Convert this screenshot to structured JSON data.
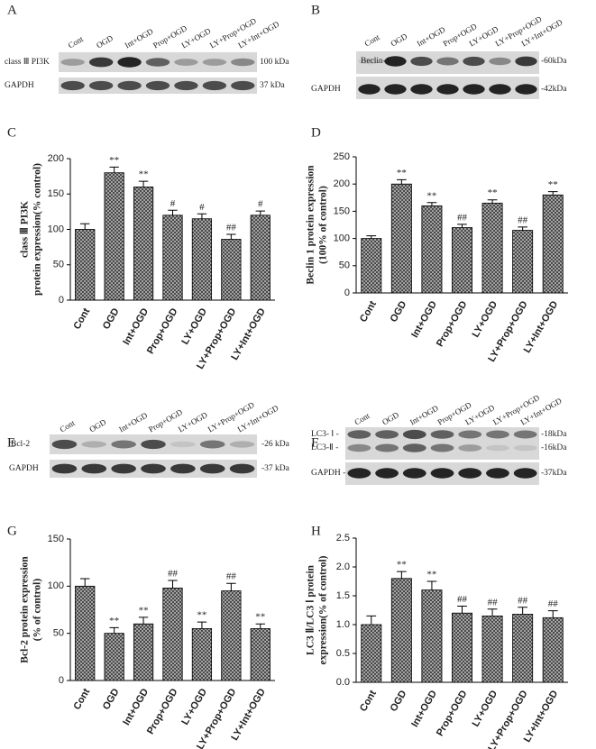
{
  "blots": [
    {
      "panel": "A",
      "lanes": [
        "Cont",
        "OGD",
        "Int+OGD",
        "Prop+OGD",
        "LY+OGD",
        "LY+Prop+OGD",
        "LY+Int+OGD"
      ],
      "rows": [
        {
          "label": "class Ⅲ PI3K",
          "size": "100 kDa"
        },
        {
          "label": "GAPDH",
          "size": "37 kDa"
        }
      ]
    },
    {
      "panel": "B",
      "lanes": [
        "Cont",
        "OGD",
        "Int+OGD",
        "Prop+OGD",
        "LY+OGD",
        "LY+Prop+OGD",
        "LY+Int+OGD"
      ],
      "rows": [
        {
          "label": "Beclin-1",
          "size": "-60kDa"
        },
        {
          "label": "GAPDH",
          "size": "-42kDa"
        }
      ]
    },
    {
      "panel": "E",
      "lanes": [
        "Cont",
        "OGD",
        "Int+OGD",
        "Prop+OGD",
        "LY+OGD",
        "LY+Prop+OGD",
        "LY+Int+OGD"
      ],
      "rows": [
        {
          "label": "Bcl-2",
          "size": "-26 kDa"
        },
        {
          "label": "GAPDH",
          "size": "-37 kDa"
        }
      ]
    },
    {
      "panel": "F",
      "lanes": [
        "Cont",
        "OGD",
        "Int+OGD",
        "Prop+OGD",
        "LY+OGD",
        "LY+Prop+OGD",
        "LY+Int+OGD"
      ],
      "rows": [
        {
          "label": "LC3- Ⅰ -",
          "size": "-18kDa"
        },
        {
          "label": "LC3-Ⅱ -",
          "size": "-16kDa"
        },
        {
          "label": "GAPDH -",
          "size": "-37kDa"
        }
      ]
    }
  ],
  "chart_data": [
    {
      "type": "bar",
      "panel": "C",
      "ylabel": [
        "class Ⅲ PI3K",
        "protein expression(% control)"
      ],
      "categories": [
        "Cont",
        "OGD",
        "Int+OGD",
        "Prop+OGD",
        "LY+OGD",
        "LY+Prop+OGD",
        "LY+Int+OGD"
      ],
      "values": [
        100,
        180,
        160,
        120,
        115,
        86,
        120
      ],
      "errors": [
        8,
        8,
        8,
        7,
        7,
        7,
        6
      ],
      "annotations": [
        null,
        "**",
        "**",
        "#",
        "#",
        "##",
        "#"
      ],
      "ylim": [
        0,
        200
      ],
      "yticks": [
        0,
        50,
        100,
        150,
        200
      ]
    },
    {
      "type": "bar",
      "panel": "D",
      "ylabel": [
        "Beclin 1 protein expression",
        "(100% of control)"
      ],
      "categories": [
        "Cont",
        "OGD",
        "Int+OGD",
        "Prop+OGD",
        "LY+OGD",
        "LY+Prop+OGD",
        "LY+Int+OGD"
      ],
      "values": [
        100,
        200,
        160,
        120,
        165,
        115,
        180
      ],
      "errors": [
        5,
        8,
        6,
        6,
        6,
        6,
        6
      ],
      "annotations": [
        null,
        "**",
        "**",
        "##",
        "**",
        "##",
        "**"
      ],
      "ylim": [
        0,
        250
      ],
      "yticks": [
        0,
        50,
        100,
        150,
        200,
        250
      ]
    },
    {
      "type": "bar",
      "panel": "G",
      "ylabel": [
        "Bcl-2 protein expression",
        "(% of control)"
      ],
      "categories": [
        "Cont",
        "OGD",
        "Int+OGD",
        "Prop+OGD",
        "LY+OGD",
        "LY+Prop+OGD",
        "LY+Int+OGD"
      ],
      "values": [
        100,
        50,
        60,
        98,
        55,
        95,
        55
      ],
      "errors": [
        8,
        6,
        7,
        8,
        7,
        8,
        5
      ],
      "annotations": [
        null,
        "**",
        "**",
        "##",
        "**",
        "##",
        "**"
      ],
      "ylim": [
        0,
        150
      ],
      "yticks": [
        0,
        50,
        100,
        150
      ]
    },
    {
      "type": "bar",
      "panel": "H",
      "ylabel": [
        "LC3 Ⅱ/LC3 Ⅰ protein",
        "expression(% of control)"
      ],
      "categories": [
        "Cont",
        "OGD",
        "Int+OGD",
        "Prop+OGD",
        "LY+OGD",
        "LY+Prop+OGD",
        "LY+Int+OGD"
      ],
      "values": [
        1.0,
        1.8,
        1.6,
        1.2,
        1.15,
        1.18,
        1.12
      ],
      "errors": [
        0.15,
        0.12,
        0.15,
        0.12,
        0.12,
        0.12,
        0.12
      ],
      "annotations": [
        null,
        "**",
        "**",
        "##",
        "##",
        "##",
        "##"
      ],
      "ylim": [
        0,
        2.5
      ],
      "yticks": [
        {
          "value": 0,
          "label": "0.0"
        },
        0.5,
        {
          "value": 1,
          "label": "1.0"
        },
        1.5,
        {
          "value": 2,
          "label": "2.0"
        },
        2.5
      ]
    }
  ]
}
